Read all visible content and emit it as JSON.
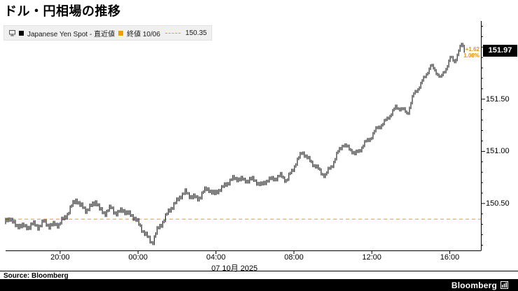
{
  "title": "ドル・円相場の推移",
  "legend": {
    "series1_label": "Japanese Yen Spot - 直近値",
    "series2_label": "終値 10/06",
    "prior_close": "150.35"
  },
  "badge": {
    "price": "151.97",
    "change": "+1.62",
    "change_pct": "1.08%"
  },
  "axes": {
    "y_ticks": [
      "151.50",
      "151.00",
      "150.50"
    ],
    "x_ticks": [
      "20:00",
      "00:00",
      "04:00",
      "08:00",
      "12:00",
      "16:00"
    ],
    "date_label": "07 10月 2025"
  },
  "footer": {
    "source": "Source: Bloomberg",
    "brand": "Bloomberg"
  },
  "colors": {
    "series": "#000000",
    "prior_close_line": "#f29d00",
    "badge_bg": "#000000",
    "badge_text": "#ffffff",
    "annotation": "#e8920c",
    "legend_bg": "#f0f0f0"
  },
  "chart_data": {
    "type": "line",
    "title": "ドル・円相場の推移",
    "series_name": "Japanese Yen Spot",
    "x_unit": "hours (0 = 2025-10-07 00:00 JST)",
    "xlim": [
      -6.8,
      17.6
    ],
    "ylim": [
      150.05,
      152.25
    ],
    "prior_close": 150.35,
    "last_price": 151.97,
    "net_change": 1.62,
    "pct_change": 1.08,
    "grid": false,
    "legend_position": "top-left",
    "points": [
      [
        -6.8,
        150.32
      ],
      [
        -6.5,
        150.36
      ],
      [
        -6.2,
        150.28
      ],
      [
        -6.0,
        150.3
      ],
      [
        -5.7,
        150.26
      ],
      [
        -5.4,
        150.31
      ],
      [
        -5.1,
        150.27
      ],
      [
        -4.8,
        150.33
      ],
      [
        -4.5,
        150.28
      ],
      [
        -4.2,
        150.31
      ],
      [
        -4.0,
        150.29
      ],
      [
        -3.7,
        150.37
      ],
      [
        -3.4,
        150.45
      ],
      [
        -3.1,
        150.55
      ],
      [
        -2.9,
        150.48
      ],
      [
        -2.6,
        150.43
      ],
      [
        -2.4,
        150.47
      ],
      [
        -2.1,
        150.52
      ],
      [
        -1.9,
        150.44
      ],
      [
        -1.6,
        150.41
      ],
      [
        -1.3,
        150.46
      ],
      [
        -1.0,
        150.4
      ],
      [
        -0.7,
        150.44
      ],
      [
        -0.4,
        150.4
      ],
      [
        -0.2,
        150.37
      ],
      [
        0.0,
        150.34
      ],
      [
        0.3,
        150.24
      ],
      [
        0.6,
        150.16
      ],
      [
        0.8,
        150.13
      ],
      [
        1.0,
        150.22
      ],
      [
        1.3,
        150.32
      ],
      [
        1.6,
        150.41
      ],
      [
        1.9,
        150.49
      ],
      [
        2.2,
        150.56
      ],
      [
        2.5,
        150.61
      ],
      [
        2.8,
        150.57
      ],
      [
        3.1,
        150.54
      ],
      [
        3.4,
        150.61
      ],
      [
        3.7,
        150.64
      ],
      [
        4.0,
        150.59
      ],
      [
        4.3,
        150.64
      ],
      [
        4.6,
        150.69
      ],
      [
        4.9,
        150.73
      ],
      [
        5.2,
        150.75
      ],
      [
        5.5,
        150.71
      ],
      [
        5.8,
        150.74
      ],
      [
        6.1,
        150.71
      ],
      [
        6.4,
        150.68
      ],
      [
        6.7,
        150.72
      ],
      [
        7.0,
        150.74
      ],
      [
        7.4,
        150.76
      ],
      [
        7.7,
        150.73
      ],
      [
        8.0,
        150.81
      ],
      [
        8.2,
        150.91
      ],
      [
        8.5,
        150.99
      ],
      [
        8.8,
        150.93
      ],
      [
        9.1,
        150.87
      ],
      [
        9.4,
        150.81
      ],
      [
        9.7,
        150.77
      ],
      [
        10.0,
        150.86
      ],
      [
        10.3,
        150.98
      ],
      [
        10.6,
        151.07
      ],
      [
        10.9,
        151.03
      ],
      [
        11.2,
        150.97
      ],
      [
        11.5,
        151.03
      ],
      [
        11.8,
        151.09
      ],
      [
        12.1,
        151.16
      ],
      [
        12.4,
        151.23
      ],
      [
        12.7,
        151.28
      ],
      [
        13.0,
        151.34
      ],
      [
        13.3,
        151.43
      ],
      [
        13.6,
        151.4
      ],
      [
        13.9,
        151.37
      ],
      [
        14.2,
        151.53
      ],
      [
        14.5,
        151.63
      ],
      [
        14.8,
        151.71
      ],
      [
        15.1,
        151.83
      ],
      [
        15.4,
        151.75
      ],
      [
        15.6,
        151.7
      ],
      [
        15.9,
        151.81
      ],
      [
        16.1,
        151.89
      ],
      [
        16.3,
        151.86
      ],
      [
        16.5,
        151.96
      ],
      [
        16.7,
        152.02
      ],
      [
        16.8,
        151.97
      ]
    ]
  }
}
